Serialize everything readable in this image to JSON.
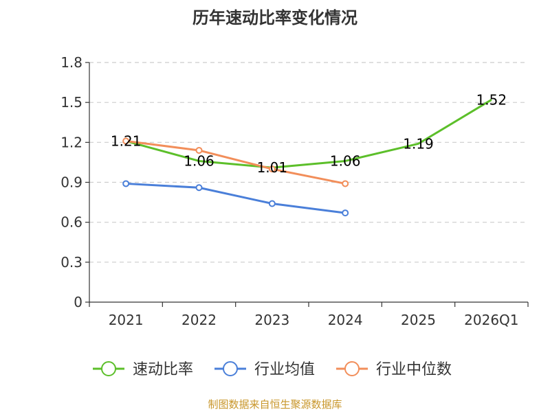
{
  "chart_data": {
    "type": "line",
    "title": "历年速动比率变化情况",
    "categories": [
      "2021",
      "2022",
      "2023",
      "2024",
      "2025",
      "2026Q1"
    ],
    "y_ticks": [
      "0",
      "0.3",
      "0.6",
      "0.9",
      "1.2",
      "1.5",
      "1.8"
    ],
    "ylim": [
      0,
      1.8
    ],
    "xlabel": "",
    "ylabel": "",
    "grid": true,
    "legend_position": "bottom",
    "series": [
      {
        "name": "速动比率",
        "color": "#5cbf2a",
        "values": [
          1.21,
          1.06,
          1.01,
          1.06,
          1.19,
          1.52
        ],
        "labels": [
          "1.21",
          "1.06",
          "1.01",
          "1.06",
          "1.19",
          "1.52"
        ],
        "markers": false
      },
      {
        "name": "行业均值",
        "color": "#4a7fd9",
        "values": [
          0.89,
          0.86,
          0.74,
          0.67,
          null,
          null
        ],
        "markers": true
      },
      {
        "name": "行业中位数",
        "color": "#f28e5a",
        "values": [
          1.21,
          1.14,
          1.0,
          0.89,
          null,
          null
        ],
        "markers": true
      }
    ]
  },
  "source": "制图数据来自恒生聚源数据库"
}
